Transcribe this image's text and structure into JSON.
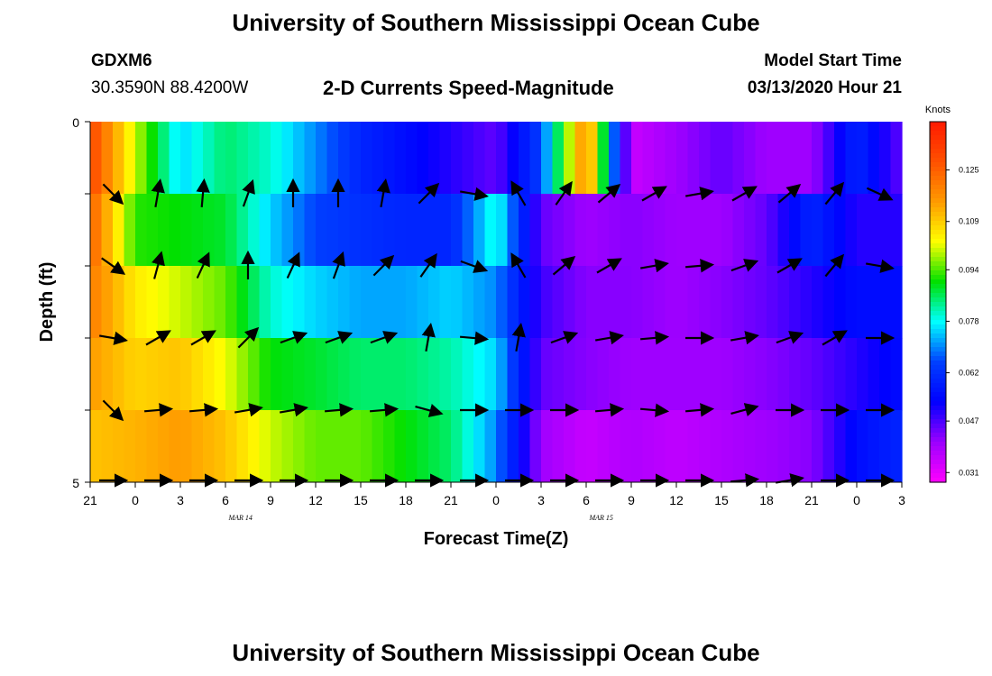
{
  "title": "University of Southern Mississippi Ocean Cube",
  "footer_title": "University of Southern Mississippi Ocean Cube",
  "station": {
    "id": "GDXM6",
    "location": "30.3590N 88.4200W"
  },
  "model": {
    "label": "Model Start Time",
    "start": "03/13/2020 Hour 21"
  },
  "chart_data": {
    "type": "heatmap",
    "title": "2-D Currents Speed-Magnitude",
    "xlabel": "Forecast Time(Z)",
    "ylabel": "Depth (ft)",
    "x_tick_labels": [
      "21",
      "0",
      "3",
      "6",
      "9",
      "12",
      "15",
      "18",
      "21",
      "0",
      "3",
      "6",
      "9",
      "12",
      "15",
      "18",
      "21",
      "0",
      "3"
    ],
    "date_labels": [
      "MAR 14",
      "MAR 15"
    ],
    "y_tick_labels": [
      "0",
      "5"
    ],
    "ylim": [
      0,
      5
    ],
    "colorbar": {
      "unit": "Knots",
      "ticks": [
        "0.125",
        "0.109",
        "0.094",
        "0.078",
        "0.062",
        "0.047",
        "0.031"
      ],
      "colors": [
        "#ff1a00",
        "#ff5000",
        "#ff9a00",
        "#ffff00",
        "#00e000",
        "#00ffff",
        "#0040ff",
        "#0000ff",
        "#9b00ff",
        "#ff00ff"
      ]
    },
    "depth_layers": [
      0.5,
      1.5,
      2.5,
      3.5,
      4.5
    ],
    "time_hours": [
      0,
      3,
      6,
      9,
      12,
      15,
      18,
      21,
      24,
      27,
      30,
      33,
      36,
      39,
      42,
      45,
      48,
      51,
      54
    ],
    "speed_knots": [
      [
        0.13,
        0.1,
        0.075,
        0.085,
        0.08,
        0.07,
        0.06,
        0.055,
        0.05,
        0.045,
        0.065,
        0.12,
        0.035,
        0.04,
        0.045,
        0.04,
        0.04,
        0.06,
        0.045
      ],
      [
        0.125,
        0.092,
        0.09,
        0.088,
        0.075,
        0.065,
        0.062,
        0.06,
        0.06,
        0.08,
        0.045,
        0.04,
        0.042,
        0.04,
        0.04,
        0.045,
        0.06,
        0.05,
        0.05
      ],
      [
        0.12,
        0.105,
        0.1,
        0.095,
        0.08,
        0.075,
        0.072,
        0.072,
        0.075,
        0.07,
        0.048,
        0.042,
        0.042,
        0.04,
        0.042,
        0.045,
        0.05,
        0.055,
        0.055
      ],
      [
        0.115,
        0.108,
        0.11,
        0.102,
        0.09,
        0.088,
        0.085,
        0.085,
        0.082,
        0.075,
        0.045,
        0.042,
        0.04,
        0.04,
        0.04,
        0.042,
        0.045,
        0.05,
        0.055
      ],
      [
        0.11,
        0.112,
        0.115,
        0.11,
        0.1,
        0.095,
        0.095,
        0.09,
        0.085,
        0.07,
        0.04,
        0.035,
        0.038,
        0.036,
        0.038,
        0.04,
        0.042,
        0.055,
        0.06
      ]
    ],
    "vectors_deg": [
      [
        135,
        10,
        5,
        20,
        0,
        0,
        10,
        45,
        100,
        330,
        35,
        50,
        60,
        80,
        60,
        50,
        40,
        115,
        110
      ],
      [
        125,
        15,
        25,
        0,
        25,
        20,
        45,
        35,
        110,
        330,
        50,
        60,
        80,
        85,
        70,
        60,
        40,
        100,
        100
      ],
      [
        100,
        60,
        60,
        45,
        70,
        70,
        70,
        10,
        95,
        10,
        70,
        80,
        85,
        90,
        80,
        70,
        60,
        90,
        95
      ],
      [
        135,
        85,
        85,
        80,
        80,
        85,
        85,
        105,
        90,
        90,
        90,
        85,
        95,
        85,
        75,
        90,
        90,
        90,
        90
      ],
      [
        90,
        90,
        90,
        90,
        90,
        90,
        90,
        90,
        90,
        90,
        90,
        90,
        90,
        90,
        85,
        80,
        90,
        90,
        95
      ]
    ]
  }
}
